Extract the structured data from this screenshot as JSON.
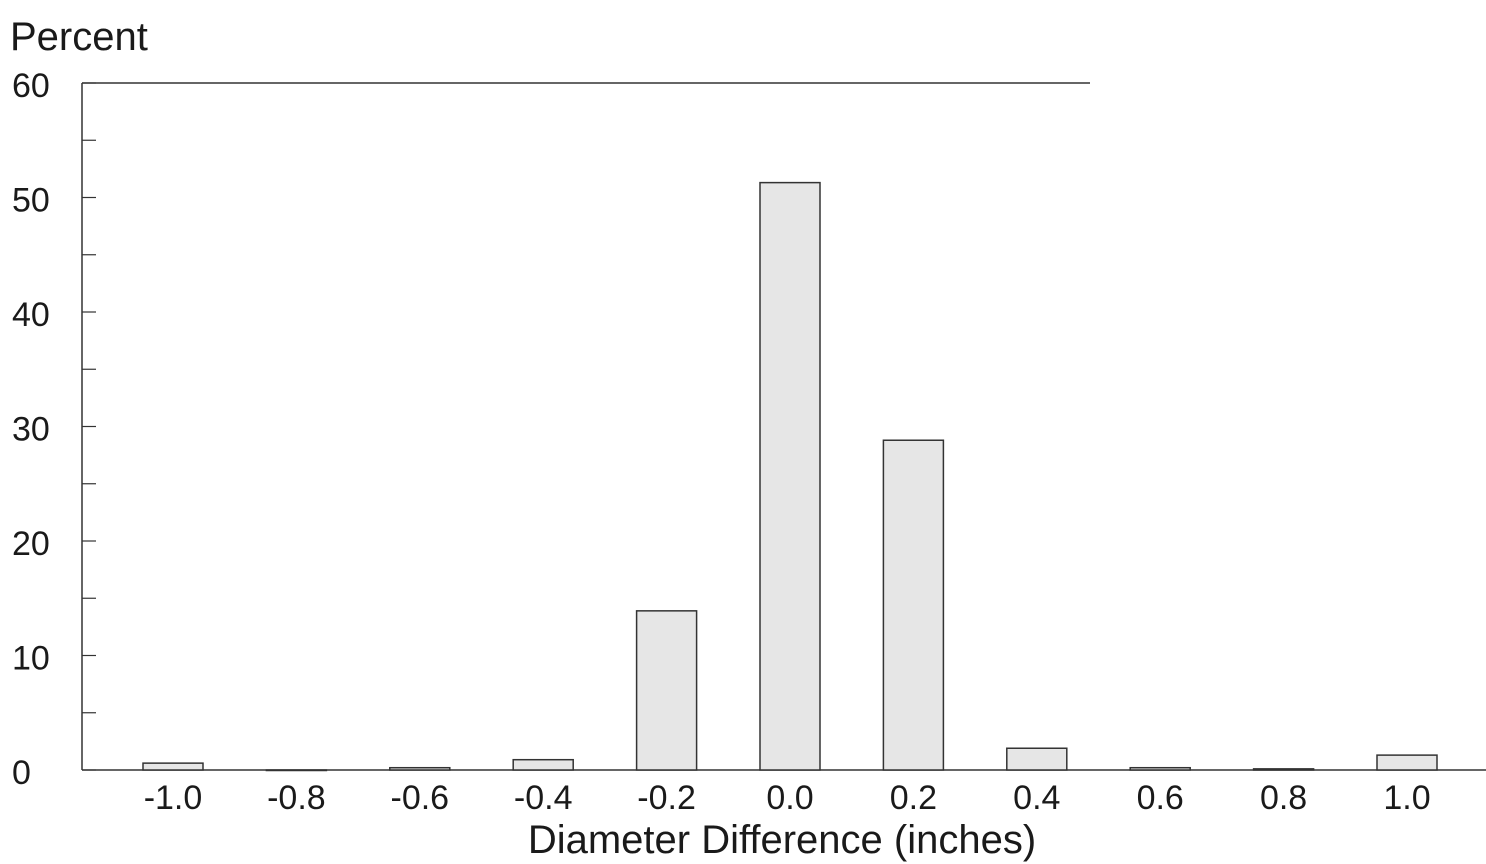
{
  "chart_data": {
    "type": "bar",
    "ylabel": "Percent",
    "xlabel": "Diameter Difference (inches)",
    "ylim": [
      0,
      60
    ],
    "yticks": [
      "0",
      "10",
      "20",
      "30",
      "40",
      "50",
      "60"
    ],
    "categories": [
      "-1.0",
      "-0.8",
      "-0.6",
      "-0.4",
      "-0.2",
      "0.0",
      "0.2",
      "0.4",
      "0.6",
      "0.8",
      "1.0"
    ],
    "values": [
      0.6,
      0.0,
      0.2,
      0.9,
      13.9,
      51.3,
      28.8,
      1.9,
      0.2,
      0.1,
      1.3
    ],
    "grid": false,
    "bar_fill": "#e6e6e6",
    "bar_stroke": "#333333"
  }
}
